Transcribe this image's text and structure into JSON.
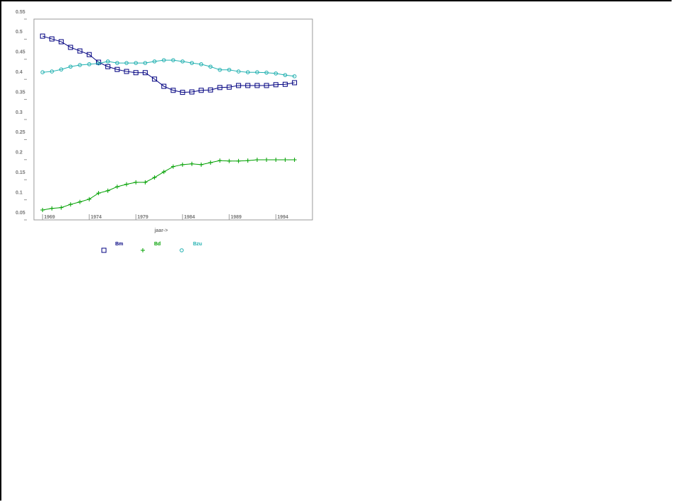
{
  "chart_data": {
    "type": "line",
    "x": [
      1969,
      1970,
      1971,
      1972,
      1973,
      1974,
      1975,
      1976,
      1977,
      1978,
      1979,
      1980,
      1981,
      1982,
      1983,
      1984,
      1985,
      1986,
      1987,
      1988,
      1989,
      1990,
      1991,
      1992,
      1993,
      1994,
      1995,
      1996
    ],
    "series": [
      {
        "name": "Bm",
        "color": "#000080",
        "marker": "square",
        "values": [
          0.49,
          0.483,
          0.476,
          0.462,
          0.453,
          0.444,
          0.425,
          0.414,
          0.407,
          0.402,
          0.399,
          0.399,
          0.383,
          0.365,
          0.355,
          0.35,
          0.351,
          0.355,
          0.356,
          0.362,
          0.363,
          0.367,
          0.367,
          0.367,
          0.367,
          0.369,
          0.37,
          0.374
        ]
      },
      {
        "name": "Bd",
        "color": "#00a000",
        "marker": "plus",
        "values": [
          0.057,
          0.061,
          0.063,
          0.071,
          0.077,
          0.084,
          0.099,
          0.105,
          0.115,
          0.121,
          0.126,
          0.126,
          0.138,
          0.152,
          0.165,
          0.17,
          0.172,
          0.17,
          0.175,
          0.18,
          0.179,
          0.179,
          0.18,
          0.182,
          0.182,
          0.182,
          0.182,
          0.182
        ]
      },
      {
        "name": "Bzu",
        "color": "#20b0b0",
        "marker": "circle",
        "values": [
          0.4,
          0.402,
          0.407,
          0.414,
          0.418,
          0.42,
          0.422,
          0.427,
          0.423,
          0.423,
          0.423,
          0.423,
          0.427,
          0.43,
          0.43,
          0.427,
          0.423,
          0.42,
          0.414,
          0.406,
          0.406,
          0.402,
          0.4,
          0.4,
          0.399,
          0.397,
          0.393,
          0.39
        ]
      }
    ],
    "x_label": "jaar->",
    "xlim": [
      1968,
      1998
    ],
    "xticks": [
      1969,
      1974,
      1979,
      1984,
      1989,
      1994
    ],
    "ylim": [
      0.05,
      0.55
    ],
    "yticks": [
      0.05,
      0.1,
      0.15,
      0.2,
      0.25,
      0.3,
      0.35,
      0.4,
      0.45,
      0.5,
      0.55
    ]
  }
}
